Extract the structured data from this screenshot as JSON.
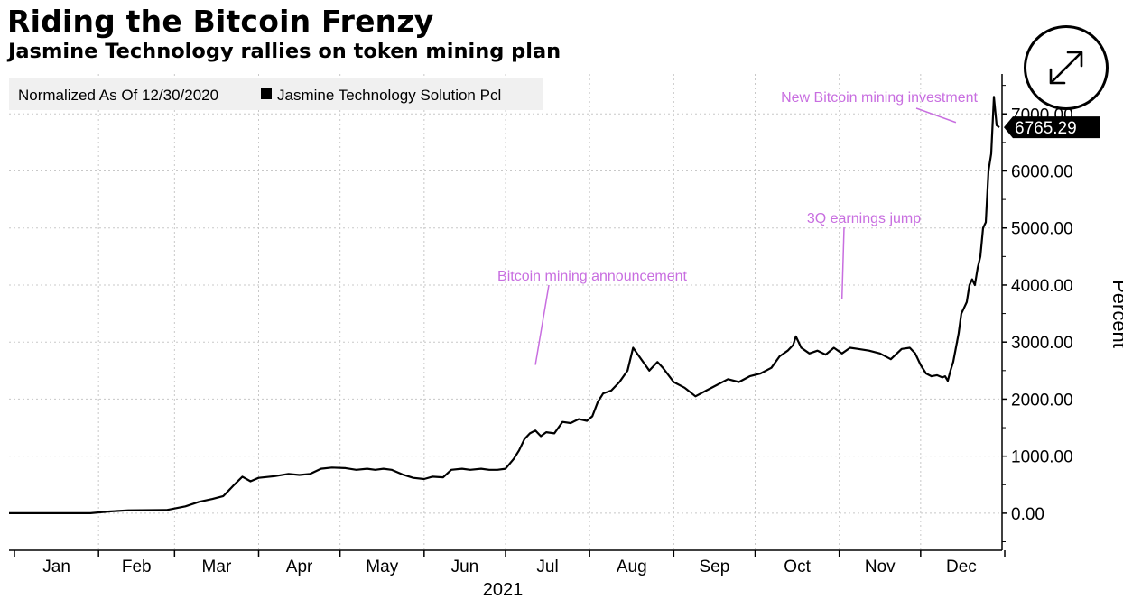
{
  "header": {
    "title": "Riding the Bitcoin Frenzy",
    "subtitle": "Jasmine Technology rallies on token mining plan"
  },
  "controls": {
    "expand_icon": "expand-arrows-icon"
  },
  "colors": {
    "series": "#000000",
    "annotation": "#c86ee0",
    "grid": "#c8c8c8",
    "legend_bg": "#f0f0f0"
  },
  "chart_data": {
    "type": "line",
    "legend": {
      "note": "Normalized As Of 12/30/2020",
      "items": [
        "Jasmine Technology Solution Pcl"
      ]
    },
    "ylabel": "Percent",
    "xlabel": "2021",
    "ylim": [
      -650,
      7700
    ],
    "y_ticks": [
      "0.00",
      "1000.00",
      "2000.00",
      "3000.00",
      "4000.00",
      "5000.00",
      "6000.00",
      "7000.00"
    ],
    "x_ticks": [
      "Jan",
      "Feb",
      "Mar",
      "Apr",
      "May",
      "Jun",
      "Jul",
      "Aug",
      "Sep",
      "Oct",
      "Nov",
      "Dec"
    ],
    "last_value_label": "6765.29",
    "grid": true,
    "annotations": [
      {
        "text": "Bitcoin mining announcement",
        "date": "2021-07-12",
        "value": 2600
      },
      {
        "text": "3Q earnings jump",
        "date": "2021-11-02",
        "value": 3750
      },
      {
        "text": "New Bitcoin mining investment",
        "date": "2021-12-14",
        "value": 6850
      }
    ],
    "series": [
      {
        "name": "Jasmine Technology Solution Pcl",
        "points": [
          [
            "2020-12-30",
            0
          ],
          [
            "2021-01-05",
            0
          ],
          [
            "2021-01-15",
            0
          ],
          [
            "2021-01-29",
            0
          ],
          [
            "2021-02-05",
            30
          ],
          [
            "2021-02-12",
            50
          ],
          [
            "2021-02-26",
            55
          ],
          [
            "2021-03-05",
            120
          ],
          [
            "2021-03-10",
            200
          ],
          [
            "2021-03-15",
            250
          ],
          [
            "2021-03-19",
            300
          ],
          [
            "2021-03-23",
            500
          ],
          [
            "2021-03-26",
            640
          ],
          [
            "2021-03-29",
            560
          ],
          [
            "2021-04-01",
            620
          ],
          [
            "2021-04-07",
            650
          ],
          [
            "2021-04-12",
            690
          ],
          [
            "2021-04-16",
            670
          ],
          [
            "2021-04-20",
            690
          ],
          [
            "2021-04-24",
            780
          ],
          [
            "2021-04-28",
            800
          ],
          [
            "2021-05-03",
            790
          ],
          [
            "2021-05-07",
            760
          ],
          [
            "2021-05-11",
            780
          ],
          [
            "2021-05-14",
            760
          ],
          [
            "2021-05-17",
            780
          ],
          [
            "2021-05-20",
            760
          ],
          [
            "2021-05-24",
            680
          ],
          [
            "2021-05-28",
            620
          ],
          [
            "2021-06-01",
            600
          ],
          [
            "2021-06-04",
            640
          ],
          [
            "2021-06-08",
            630
          ],
          [
            "2021-06-11",
            760
          ],
          [
            "2021-06-15",
            780
          ],
          [
            "2021-06-18",
            760
          ],
          [
            "2021-06-22",
            780
          ],
          [
            "2021-06-25",
            760
          ],
          [
            "2021-06-28",
            760
          ],
          [
            "2021-07-01",
            780
          ],
          [
            "2021-07-04",
            950
          ],
          [
            "2021-07-06",
            1100
          ],
          [
            "2021-07-08",
            1300
          ],
          [
            "2021-07-10",
            1400
          ],
          [
            "2021-07-12",
            1450
          ],
          [
            "2021-07-14",
            1350
          ],
          [
            "2021-07-16",
            1420
          ],
          [
            "2021-07-19",
            1400
          ],
          [
            "2021-07-22",
            1600
          ],
          [
            "2021-07-25",
            1580
          ],
          [
            "2021-07-28",
            1650
          ],
          [
            "2021-07-31",
            1620
          ],
          [
            "2021-08-02",
            1700
          ],
          [
            "2021-08-04",
            1950
          ],
          [
            "2021-08-06",
            2100
          ],
          [
            "2021-08-09",
            2150
          ],
          [
            "2021-08-12",
            2300
          ],
          [
            "2021-08-15",
            2500
          ],
          [
            "2021-08-17",
            2900
          ],
          [
            "2021-08-20",
            2700
          ],
          [
            "2021-08-23",
            2500
          ],
          [
            "2021-08-26",
            2650
          ],
          [
            "2021-08-28",
            2550
          ],
          [
            "2021-09-01",
            2300
          ],
          [
            "2021-09-05",
            2200
          ],
          [
            "2021-09-09",
            2050
          ],
          [
            "2021-09-13",
            2150
          ],
          [
            "2021-09-17",
            2250
          ],
          [
            "2021-09-21",
            2350
          ],
          [
            "2021-09-25",
            2300
          ],
          [
            "2021-09-29",
            2400
          ],
          [
            "2021-10-03",
            2450
          ],
          [
            "2021-10-07",
            2550
          ],
          [
            "2021-10-10",
            2750
          ],
          [
            "2021-10-13",
            2850
          ],
          [
            "2021-10-15",
            2950
          ],
          [
            "2021-10-16",
            3100
          ],
          [
            "2021-10-18",
            2900
          ],
          [
            "2021-10-21",
            2800
          ],
          [
            "2021-10-24",
            2850
          ],
          [
            "2021-10-27",
            2780
          ],
          [
            "2021-10-30",
            2900
          ],
          [
            "2021-11-02",
            2800
          ],
          [
            "2021-11-05",
            2900
          ],
          [
            "2021-11-08",
            2880
          ],
          [
            "2021-11-12",
            2850
          ],
          [
            "2021-11-16",
            2800
          ],
          [
            "2021-11-20",
            2700
          ],
          [
            "2021-11-24",
            2880
          ],
          [
            "2021-11-27",
            2900
          ],
          [
            "2021-11-29",
            2800
          ],
          [
            "2021-12-01",
            2600
          ],
          [
            "2021-12-03",
            2450
          ],
          [
            "2021-12-05",
            2400
          ],
          [
            "2021-12-07",
            2420
          ],
          [
            "2021-12-09",
            2380
          ],
          [
            "2021-12-10",
            2400
          ],
          [
            "2021-12-11",
            2320
          ],
          [
            "2021-12-12",
            2500
          ],
          [
            "2021-12-13",
            2650
          ],
          [
            "2021-12-14",
            2900
          ],
          [
            "2021-12-15",
            3150
          ],
          [
            "2021-12-16",
            3500
          ],
          [
            "2021-12-17",
            3600
          ],
          [
            "2021-12-18",
            3700
          ],
          [
            "2021-12-19",
            4000
          ],
          [
            "2021-12-20",
            4100
          ],
          [
            "2021-12-21",
            4000
          ],
          [
            "2021-12-22",
            4300
          ],
          [
            "2021-12-23",
            4500
          ],
          [
            "2021-12-24",
            5000
          ],
          [
            "2021-12-25",
            5100
          ],
          [
            "2021-12-26",
            6000
          ],
          [
            "2021-12-27",
            6300
          ],
          [
            "2021-12-28",
            7300
          ],
          [
            "2021-12-29",
            6800
          ],
          [
            "2021-12-30",
            6765.29
          ]
        ]
      }
    ]
  }
}
